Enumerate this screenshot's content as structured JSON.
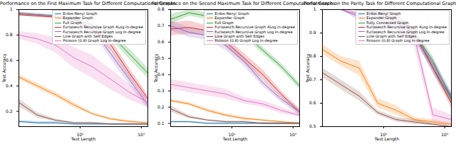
{
  "chart_data": [
    {
      "type": "line",
      "title": "Performance on the First Maximum Task for Different Computational Graphs",
      "x_label": "Test Length",
      "y_label": "Test Accuracy",
      "log": "x",
      "grid": false,
      "legend": "upper right",
      "x": [
        1,
        2,
        4,
        8,
        16,
        32,
        64,
        128
      ],
      "xlim": [
        1,
        128
      ],
      "xticks": [
        {
          "value": 10,
          "label": "10¹"
        },
        {
          "value": 100,
          "label": "10²"
        }
      ],
      "ylim": [
        0.08,
        1.0
      ],
      "yticks": [
        0.2,
        0.4,
        0.6,
        0.8,
        1.0
      ],
      "series": [
        {
          "name": "Erdos-Renyi Graph",
          "color": "#1f77b4",
          "values": [
            0.12,
            0.11,
            0.11,
            0.1,
            0.1,
            0.1,
            0.1,
            0.1
          ],
          "errors": [
            0.01,
            0.01,
            0.01,
            0.005,
            0.005,
            0.005,
            0.005,
            0.005
          ]
        },
        {
          "name": "Expander Graph",
          "color": "#ff7f0e",
          "values": [
            0.47,
            0.4,
            0.33,
            0.25,
            0.18,
            0.14,
            0.12,
            0.11
          ],
          "errors": [
            0.02,
            0.02,
            0.02,
            0.02,
            0.01,
            0.01,
            0.01,
            0.005
          ]
        },
        {
          "name": "Full Graph",
          "color": "#2ca02c",
          "values": [
            0.97,
            0.96,
            0.95,
            0.92,
            0.88,
            0.8,
            0.65,
            0.5
          ],
          "errors": [
            0.01,
            0.01,
            0.01,
            0.02,
            0.02,
            0.03,
            0.04,
            0.04
          ]
        },
        {
          "name": "Furlasesch Recursive Graph 4Log In-degree",
          "color": "#d62728",
          "values": [
            0.96,
            0.95,
            0.94,
            0.92,
            0.85,
            0.72,
            0.5,
            0.3
          ],
          "errors": [
            0.01,
            0.01,
            0.01,
            0.02,
            0.03,
            0.04,
            0.04,
            0.03
          ]
        },
        {
          "name": "Furlasesch Recursive Graph Log In-degree",
          "color": "#9467bd",
          "values": [
            0.97,
            0.96,
            0.95,
            0.93,
            0.85,
            0.65,
            0.45,
            0.25
          ],
          "errors": [
            0.01,
            0.01,
            0.01,
            0.02,
            0.03,
            0.04,
            0.04,
            0.03
          ]
        },
        {
          "name": "Line Graph with Self Edges",
          "color": "#8c564b",
          "values": [
            0.27,
            0.17,
            0.13,
            0.11,
            0.11,
            0.1,
            0.1,
            0.1
          ],
          "errors": [
            0.03,
            0.02,
            0.01,
            0.005,
            0.005,
            0.005,
            0.005,
            0.005
          ]
        },
        {
          "name": "Poisson (0.8) Graph Log In-degree",
          "color": "#e377c2",
          "values": [
            0.8,
            0.77,
            0.72,
            0.62,
            0.55,
            0.45,
            0.35,
            0.27
          ],
          "errors": [
            0.03,
            0.04,
            0.06,
            0.08,
            0.09,
            0.08,
            0.06,
            0.04
          ]
        }
      ]
    },
    {
      "type": "line",
      "title": "Performance on the Second Maximum Task for Different Computational Graphs",
      "x_label": "Test Length",
      "y_label": "Test Accuracy",
      "log": "x",
      "grid": false,
      "legend": "upper right",
      "x": [
        1,
        2,
        4,
        8,
        16,
        32,
        64,
        128
      ],
      "xlim": [
        1,
        128
      ],
      "xticks": [
        {
          "value": 10,
          "label": "10¹"
        },
        {
          "value": 100,
          "label": "10²"
        }
      ],
      "ylim": [
        0.08,
        0.8
      ],
      "yticks": [
        0.1,
        0.2,
        0.3,
        0.4,
        0.5,
        0.6,
        0.7,
        0.8
      ],
      "series": [
        {
          "name": "Erdos-Renyi Graph",
          "color": "#1f77b4",
          "values": [
            0.11,
            0.11,
            0.1,
            0.1,
            0.1,
            0.1,
            0.1,
            0.1
          ],
          "errors": [
            0.005,
            0.005,
            0.005,
            0.005,
            0.005,
            0.005,
            0.005,
            0.005
          ]
        },
        {
          "name": "Expander Graph",
          "color": "#ff7f0e",
          "values": [
            0.24,
            0.22,
            0.18,
            0.15,
            0.13,
            0.12,
            0.11,
            0.1
          ],
          "errors": [
            0.01,
            0.01,
            0.01,
            0.01,
            0.01,
            0.005,
            0.005,
            0.005
          ]
        },
        {
          "name": "Full Graph",
          "color": "#2ca02c",
          "values": [
            0.74,
            0.78,
            0.76,
            0.72,
            0.65,
            0.55,
            0.45,
            0.33
          ],
          "errors": [
            0.03,
            0.02,
            0.02,
            0.02,
            0.02,
            0.02,
            0.02,
            0.02
          ]
        },
        {
          "name": "Furlasesch Recursive Graph 4Log In-degree",
          "color": "#d62728",
          "values": [
            0.68,
            0.69,
            0.67,
            0.6,
            0.5,
            0.4,
            0.28,
            0.17
          ],
          "errors": [
            0.04,
            0.04,
            0.03,
            0.03,
            0.03,
            0.03,
            0.02,
            0.02
          ]
        },
        {
          "name": "Furlasesch Recursive Graph Log In-degree",
          "color": "#9467bd",
          "values": [
            0.7,
            0.66,
            0.64,
            0.58,
            0.48,
            0.35,
            0.25,
            0.17
          ],
          "errors": [
            0.03,
            0.03,
            0.03,
            0.03,
            0.03,
            0.02,
            0.02,
            0.02
          ]
        },
        {
          "name": "Line Graph with Self Edges",
          "color": "#8c564b",
          "values": [
            0.19,
            0.14,
            0.12,
            0.11,
            0.11,
            0.1,
            0.1,
            0.1
          ],
          "errors": [
            0.02,
            0.01,
            0.005,
            0.005,
            0.005,
            0.005,
            0.005,
            0.005
          ]
        },
        {
          "name": "Poisson (0.8) Graph Log In-degree",
          "color": "#e377c2",
          "values": [
            0.34,
            0.32,
            0.3,
            0.28,
            0.24,
            0.22,
            0.18,
            0.15
          ],
          "errors": [
            0.03,
            0.03,
            0.03,
            0.03,
            0.02,
            0.02,
            0.02,
            0.01
          ]
        }
      ]
    },
    {
      "type": "line",
      "title": "Performance on the Parity Task for Different Computational Graphs",
      "x_label": "Test Length",
      "y_label": "Test Accuracy",
      "log": "x",
      "grid": false,
      "legend": "upper right",
      "x": [
        1,
        2,
        4,
        8,
        16,
        32,
        64,
        128
      ],
      "xlim": [
        1,
        128
      ],
      "xticks": [
        {
          "value": 10,
          "label": "10¹"
        },
        {
          "value": 100,
          "label": "10²"
        }
      ],
      "ylim": [
        0.5,
        1.0
      ],
      "yticks": [
        0.5,
        0.6,
        0.7,
        0.8,
        0.9,
        1.0
      ],
      "series": [
        {
          "name": "Erdos-Renyi Graph",
          "color": "#1f77b4",
          "values": [
            1.0,
            1.0,
            1.0,
            0.98,
            0.95,
            0.9,
            0.75,
            0.62
          ],
          "errors": [
            0.0,
            0.0,
            0.0,
            0.01,
            0.02,
            0.02,
            0.02,
            0.02
          ]
        },
        {
          "name": "Expander Graph",
          "color": "#ff7f0e",
          "values": [
            0.83,
            0.78,
            0.75,
            0.6,
            0.57,
            0.53,
            0.52,
            0.51
          ],
          "errors": [
            0.02,
            0.02,
            0.03,
            0.02,
            0.02,
            0.01,
            0.01,
            0.005
          ]
        },
        {
          "name": "Fully Connected Graph",
          "color": "#2ca02c",
          "values": [
            1.0,
            1.0,
            1.0,
            1.0,
            0.98,
            0.9,
            0.78,
            0.62
          ],
          "errors": [
            0.0,
            0.0,
            0.0,
            0.0,
            0.01,
            0.02,
            0.02,
            0.02
          ]
        },
        {
          "name": "Furlasesch Recursive Graph 4Log In-degree",
          "color": "#d62728",
          "values": [
            1.0,
            1.0,
            1.0,
            0.99,
            0.96,
            0.9,
            0.75,
            0.6
          ],
          "errors": [
            0.0,
            0.0,
            0.0,
            0.01,
            0.02,
            0.02,
            0.02,
            0.02
          ]
        },
        {
          "name": "Furlasesch Recursive Graph Log In-degree",
          "color": "#9467bd",
          "values": [
            1.0,
            1.0,
            0.97,
            0.92,
            0.95,
            0.88,
            0.77,
            0.63
          ],
          "errors": [
            0.0,
            0.0,
            0.02,
            0.03,
            0.02,
            0.02,
            0.02,
            0.02
          ]
        },
        {
          "name": "Line Graph with Self Edges",
          "color": "#8c564b",
          "values": [
            0.73,
            0.68,
            0.63,
            0.56,
            0.53,
            0.52,
            0.51,
            0.5
          ],
          "errors": [
            0.02,
            0.02,
            0.02,
            0.01,
            0.01,
            0.01,
            0.005,
            0.005
          ]
        },
        {
          "name": "Poisson (0.8) Graph Log In-degree",
          "color": "#e377c2",
          "values": [
            1.0,
            1.0,
            0.98,
            0.97,
            0.92,
            0.88,
            0.55,
            0.53
          ],
          "errors": [
            0.0,
            0.0,
            0.01,
            0.02,
            0.03,
            0.04,
            0.03,
            0.02
          ]
        }
      ]
    }
  ]
}
